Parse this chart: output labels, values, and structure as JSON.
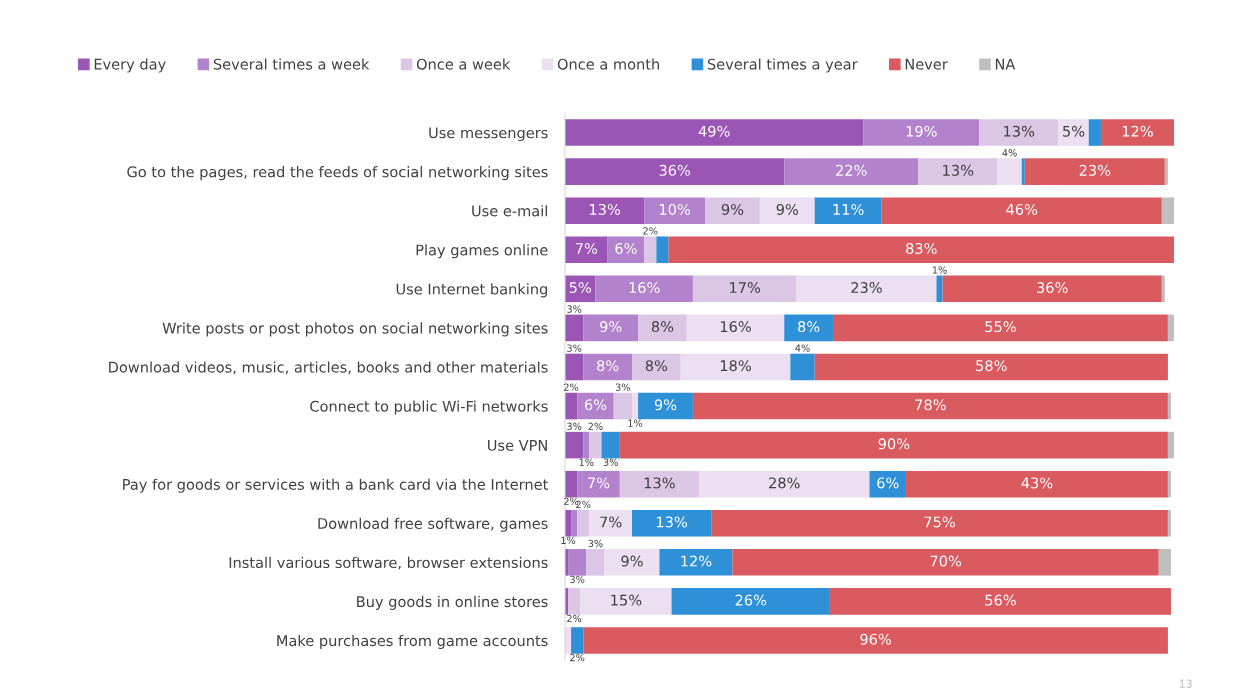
{
  "chart_data": {
    "type": "bar",
    "orientation": "horizontal",
    "stacked": true,
    "legend": "top",
    "tick_labels": "y",
    "xlim": [
      0,
      100
    ],
    "grid": false,
    "categories": [
      "Use messengers",
      "Go to the pages, read the feeds of social networking sites",
      "Use e-mail",
      "Play games online",
      "Use Internet banking",
      "Write posts or post photos on social networking sites",
      "Download videos, music, articles, books and other materials",
      "Connect to public Wi-Fi networks",
      "Use VPN",
      "Pay for goods or services with a bank card via the Internet",
      "Download free software, games",
      "Install various software, browser extensions",
      "Buy goods in online stores",
      "Make purchases from game accounts"
    ],
    "series": [
      {
        "name": "Every day",
        "color": "#9b55b5",
        "values": [
          49,
          36,
          13,
          7,
          5,
          3,
          3,
          2,
          3,
          2,
          1,
          0.5,
          0.5,
          0
        ],
        "value_labels": [
          "49%",
          "36%",
          "13%",
          "7%",
          "5%",
          "3%",
          "3%",
          "2%",
          "3%",
          "2%",
          "1%",
          null,
          null,
          null
        ]
      },
      {
        "name": "Several times a week",
        "color": "#b283cc",
        "values": [
          19,
          22,
          10,
          6,
          16,
          9,
          8,
          6,
          1,
          7,
          1,
          3,
          0,
          0
        ],
        "value_labels": [
          "19%",
          "22%",
          "10%",
          "6%",
          "16%",
          "9%",
          "8%",
          "6%",
          "1%",
          "7%",
          null,
          "3%",
          null,
          null
        ]
      },
      {
        "name": "Once a week",
        "color": "#dcc6e6",
        "values": [
          13,
          13,
          9,
          2,
          17,
          8,
          8,
          3,
          2,
          13,
          2,
          3,
          2,
          0
        ],
        "value_labels": [
          "13%",
          "13%",
          "9%",
          "2%",
          "17%",
          "8%",
          "8%",
          "3%",
          "2%",
          "13%",
          "2%",
          "3%",
          "2%",
          null
        ]
      },
      {
        "name": "Once a month",
        "color": "#ebdff1",
        "values": [
          5,
          4,
          9,
          0,
          23,
          16,
          18,
          1,
          0,
          28,
          7,
          9,
          15,
          1
        ],
        "value_labels": [
          "5%",
          "4%",
          "9%",
          null,
          "23%",
          "16%",
          "18%",
          "1%",
          null,
          "28%",
          "7%",
          "9%",
          "15%",
          null
        ]
      },
      {
        "name": "Several times a year",
        "color": "#2e90d6",
        "values": [
          2,
          0.5,
          11,
          2,
          1,
          8,
          4,
          9,
          3,
          6,
          13,
          12,
          26,
          2
        ],
        "value_labels": [
          null,
          null,
          "11%",
          null,
          "1%",
          "8%",
          "4%",
          "9%",
          "3%",
          "6%",
          "13%",
          "12%",
          "26%",
          "2%"
        ]
      },
      {
        "name": "Never",
        "color": "#d95b60",
        "values": [
          12,
          23,
          46,
          83,
          36,
          55,
          58,
          78,
          90,
          43,
          75,
          70,
          56,
          96
        ],
        "value_labels": [
          "12%",
          "23%",
          "46%",
          "83%",
          "36%",
          "55%",
          "58%",
          "78%",
          "90%",
          "43%",
          "75%",
          "70%",
          "56%",
          "96%"
        ]
      },
      {
        "name": "NA",
        "color": "#bfbfbf",
        "values": [
          0,
          0.5,
          2,
          0,
          0.5,
          1,
          0,
          0.5,
          1,
          0.5,
          0.5,
          2,
          0,
          0
        ],
        "value_labels": [
          null,
          null,
          null,
          null,
          null,
          null,
          null,
          null,
          null,
          null,
          null,
          null,
          null,
          null
        ]
      }
    ],
    "annotations": [
      "13"
    ]
  }
}
